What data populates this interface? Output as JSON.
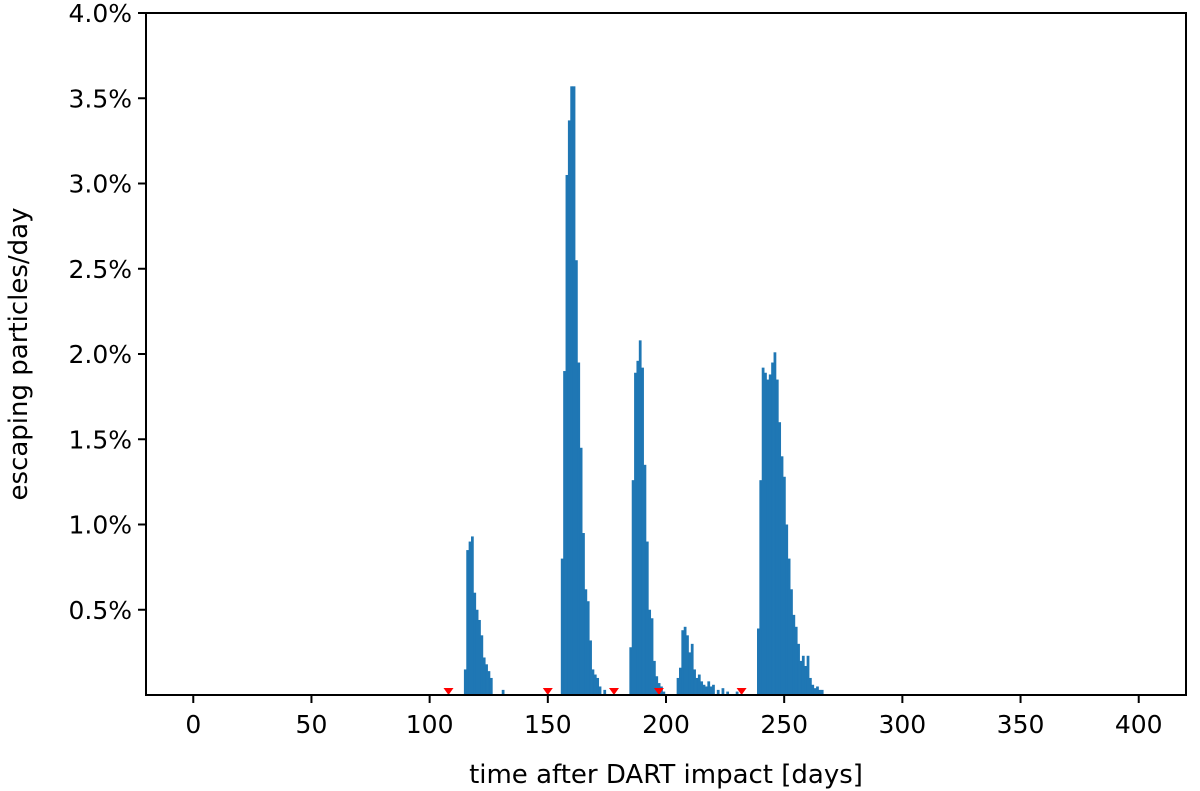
{
  "chart_data": {
    "type": "bar",
    "title": "",
    "xlabel": "time after DART impact [days]",
    "ylabel": "escaping particles/day",
    "xlim": [
      -20,
      420
    ],
    "ylim": [
      0,
      4.0
    ],
    "xticks": [
      0,
      50,
      100,
      150,
      200,
      250,
      300,
      350,
      400
    ],
    "xtick_labels": [
      "0",
      "50",
      "100",
      "150",
      "200",
      "250",
      "300",
      "350",
      "400"
    ],
    "yticks": [
      0.5,
      1.0,
      1.5,
      2.0,
      2.5,
      3.0,
      3.5,
      4.0
    ],
    "ytick_labels": [
      "0.5%",
      "1.0%",
      "1.5%",
      "2.0%",
      "2.5%",
      "3.0%",
      "3.5%",
      "4.0%"
    ],
    "grid": false,
    "bar_color": "#1f77b4",
    "marker_color": "#ff0000",
    "x": [
      115,
      116,
      117,
      118,
      119,
      120,
      121,
      122,
      123,
      124,
      125,
      126,
      131,
      156,
      157,
      158,
      159,
      160,
      161,
      162,
      163,
      164,
      165,
      166,
      167,
      168,
      169,
      170,
      171,
      172,
      174,
      185,
      186,
      187,
      188,
      189,
      190,
      191,
      192,
      193,
      194,
      195,
      196,
      197,
      198,
      199,
      205,
      206,
      207,
      208,
      209,
      210,
      211,
      212,
      213,
      214,
      215,
      216,
      217,
      218,
      219,
      220,
      222,
      224,
      226,
      230,
      239,
      240,
      241,
      242,
      243,
      244,
      245,
      246,
      247,
      248,
      249,
      250,
      251,
      252,
      253,
      254,
      255,
      256,
      257,
      258,
      259,
      260,
      261,
      262,
      263,
      264,
      265,
      266
    ],
    "values": [
      0.15,
      0.85,
      0.9,
      0.93,
      0.6,
      0.5,
      0.44,
      0.35,
      0.22,
      0.18,
      0.14,
      0.1,
      0.03,
      0.8,
      1.9,
      3.05,
      3.37,
      3.57,
      3.57,
      2.55,
      1.95,
      1.45,
      0.95,
      0.62,
      0.55,
      0.32,
      0.15,
      0.12,
      0.1,
      0.05,
      0.03,
      0.28,
      1.26,
      1.89,
      1.96,
      2.08,
      1.92,
      1.35,
      0.9,
      0.5,
      0.45,
      0.2,
      0.11,
      0.07,
      0.05,
      0.02,
      0.1,
      0.16,
      0.38,
      0.4,
      0.35,
      0.25,
      0.3,
      0.15,
      0.1,
      0.12,
      0.08,
      0.06,
      0.05,
      0.08,
      0.05,
      0.06,
      0.03,
      0.04,
      0.02,
      0.02,
      0.39,
      1.26,
      1.92,
      1.89,
      1.85,
      1.88,
      1.95,
      2.01,
      1.85,
      1.6,
      1.4,
      1.28,
      1.0,
      0.8,
      0.62,
      0.47,
      0.4,
      0.3,
      0.2,
      0.23,
      0.17,
      0.23,
      0.1,
      0.06,
      0.04,
      0.05,
      0.03,
      0.03
    ],
    "markers_x": [
      108,
      150,
      178,
      197,
      232
    ]
  }
}
